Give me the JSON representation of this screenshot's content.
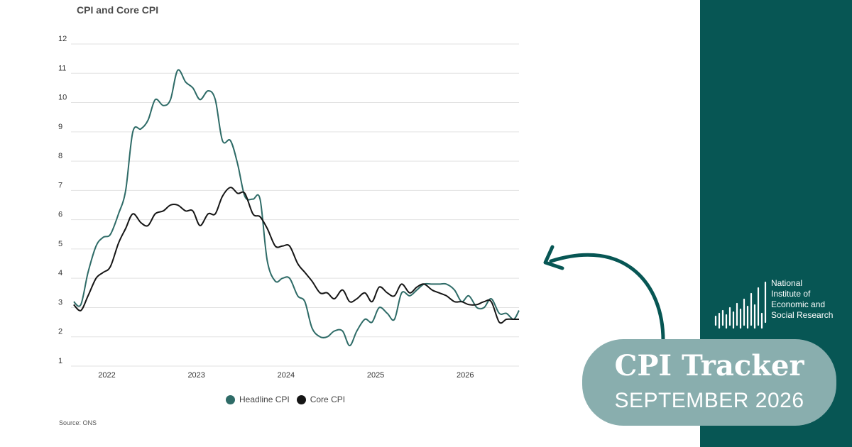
{
  "colors": {
    "headline": "#2e6b67",
    "core": "#151515",
    "panel": "#075654",
    "badge": "#89aeae",
    "arrow": "#075654"
  },
  "chart_data": {
    "type": "line",
    "title": "CPI and Core CPI",
    "xlabel": "",
    "ylabel": "",
    "ylim": [
      1,
      12
    ],
    "yticks": [
      "1",
      "2",
      "3",
      "4",
      "5",
      "6",
      "7",
      "8",
      "9",
      "10",
      "11",
      "12"
    ],
    "xticks": [
      "2022",
      "2023",
      "2024",
      "2025",
      "2026"
    ],
    "xlim": [
      2021.6,
      2026.6
    ],
    "grid": true,
    "legend_placement": "bottom",
    "series": [
      {
        "name": "Headline CPI",
        "x": [
          2021.63,
          2021.71,
          2021.79,
          2021.88,
          2021.96,
          2022.04,
          2022.13,
          2022.21,
          2022.29,
          2022.38,
          2022.46,
          2022.54,
          2022.63,
          2022.71,
          2022.79,
          2022.88,
          2022.96,
          2023.04,
          2023.13,
          2023.21,
          2023.29,
          2023.38,
          2023.46,
          2023.54,
          2023.63,
          2023.71,
          2023.79,
          2023.88,
          2023.96,
          2024.04,
          2024.13,
          2024.21,
          2024.29,
          2024.38,
          2024.46,
          2024.54,
          2024.63,
          2024.71,
          2024.79,
          2024.88,
          2024.96,
          2025.04,
          2025.13,
          2025.21,
          2025.29,
          2025.38,
          2025.46,
          2025.54,
          2025.63,
          2025.71,
          2025.79,
          2025.88,
          2025.96,
          2026.04,
          2026.13,
          2026.21,
          2026.29,
          2026.38,
          2026.46,
          2026.54,
          2026.6
        ],
        "values": [
          3.2,
          3.1,
          4.2,
          5.1,
          5.4,
          5.5,
          6.2,
          7.0,
          9.0,
          9.1,
          9.4,
          10.1,
          9.9,
          10.1,
          11.1,
          10.7,
          10.5,
          10.1,
          10.4,
          10.1,
          8.7,
          8.7,
          7.9,
          6.8,
          6.7,
          6.7,
          4.6,
          3.9,
          4.0,
          4.0,
          3.4,
          3.2,
          2.3,
          2.0,
          2.0,
          2.2,
          2.2,
          1.7,
          2.2,
          2.6,
          2.5,
          3.0,
          2.8,
          2.6,
          3.5,
          3.4,
          3.6,
          3.8,
          3.8,
          3.8,
          3.8,
          3.6,
          3.2,
          3.4,
          3.0,
          3.0,
          3.3,
          2.8,
          2.8,
          2.6,
          2.9
        ]
      },
      {
        "name": "Core CPI",
        "x": [
          2021.63,
          2021.71,
          2021.79,
          2021.88,
          2021.96,
          2022.04,
          2022.13,
          2022.21,
          2022.29,
          2022.38,
          2022.46,
          2022.54,
          2022.63,
          2022.71,
          2022.79,
          2022.88,
          2022.96,
          2023.04,
          2023.13,
          2023.21,
          2023.29,
          2023.38,
          2023.46,
          2023.54,
          2023.63,
          2023.71,
          2023.79,
          2023.88,
          2023.96,
          2024.04,
          2024.13,
          2024.21,
          2024.29,
          2024.38,
          2024.46,
          2024.54,
          2024.63,
          2024.71,
          2024.79,
          2024.88,
          2024.96,
          2025.04,
          2025.13,
          2025.21,
          2025.29,
          2025.38,
          2025.46,
          2025.54,
          2025.63,
          2025.71,
          2025.79,
          2025.88,
          2025.96,
          2026.04,
          2026.13,
          2026.21,
          2026.29,
          2026.38,
          2026.46,
          2026.54,
          2026.6
        ],
        "values": [
          3.1,
          2.9,
          3.4,
          4.0,
          4.2,
          4.4,
          5.2,
          5.7,
          6.2,
          5.9,
          5.8,
          6.2,
          6.3,
          6.5,
          6.5,
          6.3,
          6.3,
          5.8,
          6.2,
          6.2,
          6.8,
          7.1,
          6.9,
          6.9,
          6.2,
          6.1,
          5.7,
          5.1,
          5.1,
          5.1,
          4.5,
          4.2,
          3.9,
          3.5,
          3.5,
          3.3,
          3.6,
          3.2,
          3.3,
          3.5,
          3.2,
          3.7,
          3.5,
          3.4,
          3.8,
          3.5,
          3.7,
          3.8,
          3.6,
          3.5,
          3.4,
          3.2,
          3.2,
          3.1,
          3.1,
          3.2,
          3.2,
          2.5,
          2.6,
          2.6,
          2.6
        ]
      }
    ]
  },
  "source": "Source: ONS",
  "branding": {
    "org_lines": [
      "National",
      "Institute of",
      "Economic and",
      "Social Research"
    ]
  },
  "badge": {
    "title": "CPI Tracker",
    "subtitle": "SEPTEMBER 2026"
  }
}
